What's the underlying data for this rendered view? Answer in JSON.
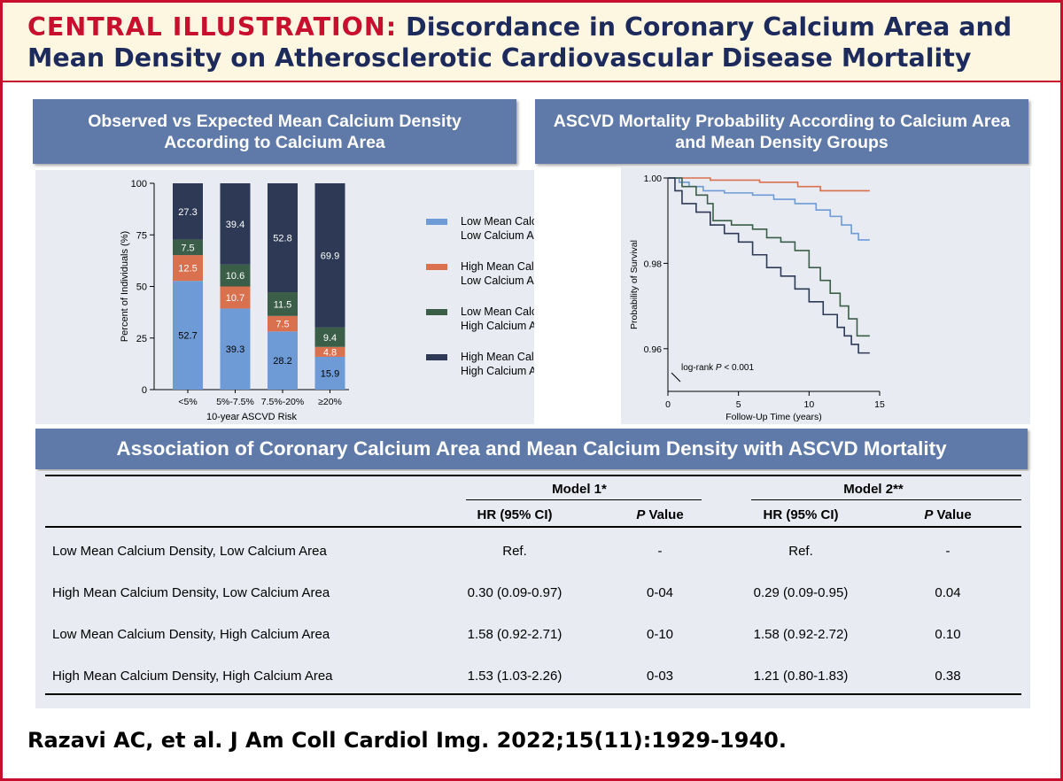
{
  "title": {
    "lead": "CENTRAL ILLUSTRATION:",
    "rest": "Discordance in Coronary Calcium Area and Mean Density on Atherosclerotic Cardiovascular Disease Mortality"
  },
  "panels": {
    "bar_title": "Observed vs Expected Mean Calcium Density According to Calcium Area",
    "km_title": "ASCVD Mortality Probability According to Calcium Area and Mean Density Groups",
    "table_title": "Association of Coronary Calcium Area and Mean Calcium Density with ASCVD Mortality"
  },
  "groups": [
    {
      "name": "Low Mean Calcium Density, Low Calcium Area",
      "legend_lines": [
        "Low Mean Calcium Density,",
        "Low Calcium Area"
      ],
      "color": "#6e9bd6"
    },
    {
      "name": "High Mean Calcium Density, Low Calcium Area",
      "legend_lines": [
        "High Mean Calcium Density,",
        "Low Calcium Area"
      ],
      "color": "#d9704e"
    },
    {
      "name": "Low Mean Calcium Density, High Calcium Area",
      "legend_lines": [
        "Low Mean Calcium Density,",
        "High Calcium Area"
      ],
      "color": "#3b5e48"
    },
    {
      "name": "High Mean Calcium Density, High Calcium Area",
      "legend_lines": [
        "High Mean Calcium Density,",
        "High Calcium Area"
      ],
      "color": "#2e3a55"
    }
  ],
  "chart_data": [
    {
      "type": "bar",
      "stacked": true,
      "categories": [
        "<5%",
        "5%-7.5%",
        "7.5%-20%",
        "≥20%"
      ],
      "xlabel": "10-year ASCVD Risk",
      "ylabel": "Percent of Individuals (%)",
      "ylim": [
        0,
        100
      ],
      "yticks": [
        0,
        25,
        50,
        75,
        100
      ],
      "series": [
        {
          "name": "Low Mean Calcium Density, Low Calcium Area",
          "values": [
            52.7,
            39.3,
            28.2,
            15.9
          ]
        },
        {
          "name": "High Mean Calcium Density, Low Calcium Area",
          "values": [
            12.5,
            10.7,
            7.5,
            4.8
          ]
        },
        {
          "name": "Low Mean Calcium Density, High Calcium Area",
          "values": [
            7.5,
            10.6,
            11.5,
            9.4
          ]
        },
        {
          "name": "High Mean Calcium Density, High Calcium Area",
          "values": [
            27.3,
            39.4,
            52.8,
            69.9
          ]
        }
      ],
      "legend": "right"
    },
    {
      "type": "line",
      "step": true,
      "xlabel": "Follow-Up Time (years)",
      "ylabel": "Probability of Survival",
      "xlim": [
        0,
        15
      ],
      "ylim": [
        0.95,
        1.0
      ],
      "xticks": [
        0,
        5,
        10,
        15
      ],
      "yticks": [
        0.96,
        0.98,
        1.0
      ],
      "ytick_labels": [
        "0.96",
        "0.98",
        "1.00"
      ],
      "annotation": {
        "prefix": "log-rank ",
        "p": "P",
        "rest": " < 0.001"
      },
      "series": [
        {
          "name": "High Mean Calcium Density, Low Calcium Area",
          "x": [
            0,
            3.0,
            6.5,
            9.2,
            10.8,
            14.3
          ],
          "y": [
            1.0,
            0.9995,
            0.999,
            0.998,
            0.997,
            0.997
          ]
        },
        {
          "name": "Low Mean Calcium Density, Low Calcium Area",
          "x": [
            0,
            0.8,
            1.5,
            2.5,
            4.0,
            6.0,
            7.5,
            9.0,
            10.5,
            11.5,
            12.3,
            13.0,
            13.5,
            14.3
          ],
          "y": [
            1.0,
            0.999,
            0.998,
            0.997,
            0.9965,
            0.996,
            0.995,
            0.994,
            0.9925,
            0.991,
            0.989,
            0.987,
            0.9855,
            0.9855
          ]
        },
        {
          "name": "Low Mean Calcium Density, High Calcium Area",
          "x": [
            0,
            1.0,
            2.0,
            2.8,
            3.2,
            4.5,
            6.0,
            7.0,
            8.0,
            9.0,
            10.0,
            10.8,
            11.5,
            12.2,
            12.8,
            13.4,
            14.3
          ],
          "y": [
            1.0,
            0.998,
            0.996,
            0.994,
            0.99,
            0.989,
            0.988,
            0.986,
            0.985,
            0.983,
            0.979,
            0.976,
            0.973,
            0.97,
            0.967,
            0.963,
            0.963
          ]
        },
        {
          "name": "High Mean Calcium Density, High Calcium Area",
          "x": [
            0,
            0.5,
            1.0,
            2.0,
            3.0,
            4.0,
            5.0,
            6.0,
            7.0,
            8.0,
            9.0,
            10.0,
            11.0,
            12.0,
            12.5,
            13.0,
            13.5,
            14.3
          ],
          "y": [
            1.0,
            0.997,
            0.994,
            0.992,
            0.989,
            0.987,
            0.985,
            0.982,
            0.979,
            0.977,
            0.974,
            0.971,
            0.968,
            0.965,
            0.963,
            0.961,
            0.959,
            0.959
          ]
        }
      ]
    }
  ],
  "table": {
    "model1": "Model 1*",
    "model2": "Model 2**",
    "hr_label": "HR (95% CI)",
    "p_italic": "P",
    "p_rest": " Value",
    "rows": [
      {
        "label": "Low Mean Calcium Density, Low Calcium Area",
        "hr1": "Ref.",
        "p1": "-",
        "hr2": "Ref.",
        "p2": "-"
      },
      {
        "label": "High Mean Calcium Density, Low Calcium Area",
        "hr1": "0.30 (0.09-0.97)",
        "p1": "0-04",
        "hr2": "0.29 (0.09-0.95)",
        "p2": "0.04"
      },
      {
        "label": "Low Mean Calcium Density, High Calcium Area",
        "hr1": "1.58 (0.92-2.71)",
        "p1": "0-10",
        "hr2": "1.58 (0.92-2.72)",
        "p2": "0.10"
      },
      {
        "label": "High Mean Calcium Density, High Calcium Area",
        "hr1": "1.53 (1.03-2.26)",
        "p1": "0-03",
        "hr2": "1.21 (0.80-1.83)",
        "p2": "0.38"
      }
    ]
  },
  "citation": "Razavi AC, et al. J Am Coll Cardiol Img. 2022;15(11):1929-1940."
}
